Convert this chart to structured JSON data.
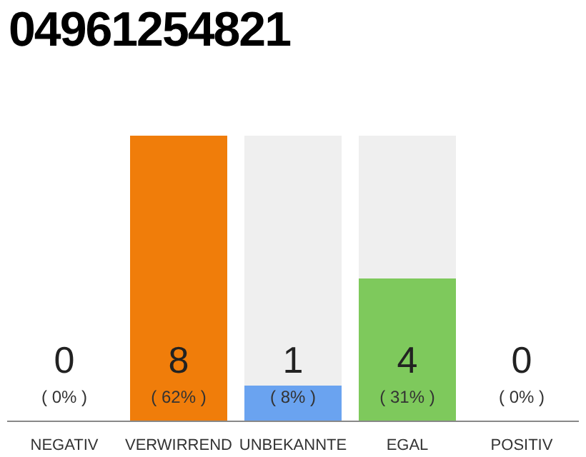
{
  "chart_data": {
    "type": "bar",
    "title": "04961254821",
    "categories": [
      "NEGATIV",
      "VERWIRREND",
      "UNBEKANNTE",
      "EGAL",
      "POSITIV"
    ],
    "values": [
      0,
      8,
      1,
      4,
      0
    ],
    "colors": [
      "#f07d0a",
      "#f07d0a",
      "#6aa3f0",
      "#7ec95c",
      "#7ec95c"
    ],
    "data_labels": true,
    "annotations": [
      "( 0% )",
      "( 62% )",
      "( 8% )",
      "( 31% )",
      "( 0% )"
    ]
  }
}
